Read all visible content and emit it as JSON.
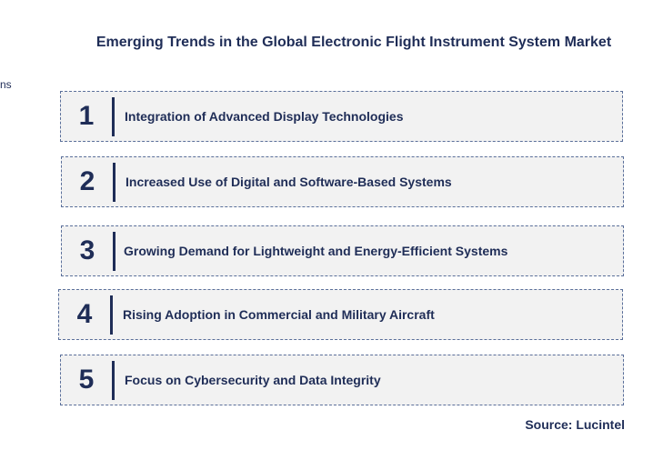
{
  "title": "Emerging Trends in the Global Electronic Flight Instrument System Market",
  "stray_text": "ns",
  "trends": [
    {
      "number": "1",
      "label": "Integration of Advanced Display  Technologies"
    },
    {
      "number": "2",
      "label": "Increased Use of Digital and  Software-Based Systems"
    },
    {
      "number": "3",
      "label": "Growing Demand for Lightweight and  Energy-Efficient Systems"
    },
    {
      "number": "4",
      "label": "Rising Adoption  in Commercial and  Military Aircraft"
    },
    {
      "number": "5",
      "label": "Focus on Cybersecurity and Data Integrity"
    }
  ],
  "source": "Source: Lucintel",
  "colors": {
    "text": "#1f2d57",
    "box_fill": "#f2f2f2",
    "box_border": "#5a6f9a"
  }
}
